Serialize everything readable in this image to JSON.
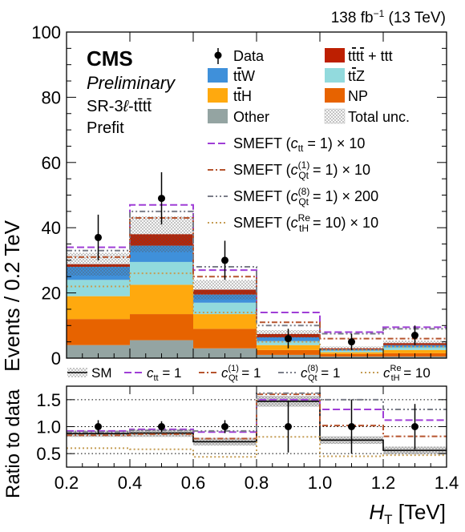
{
  "chart_data": {
    "type": "bar",
    "stacked": true,
    "lumi": "138 fb⁻¹ (13 TeV)",
    "experiment": "CMS",
    "preliminary": "Preliminary",
    "region": "SR-3ℓ-tt̄tt̄",
    "stage": "Prefit",
    "xlabel": "H_T [TeV]",
    "ylabel": "Events / 0.2 TeV",
    "ratio_ylabel": "Ratio to data",
    "xlim": [
      0.2,
      1.4
    ],
    "ylim": [
      0,
      100
    ],
    "ratio_ylim": [
      0.25,
      1.75
    ],
    "xticks": [
      "0.2",
      "0.4",
      "0.6",
      "0.8",
      "1.0",
      "1.2",
      "1.4"
    ],
    "yticks": [
      "0",
      "20",
      "40",
      "60",
      "80",
      "100"
    ],
    "ratio_yticks": [
      "0.5",
      "1.0",
      "1.5"
    ],
    "bin_edges": [
      0.2,
      0.4,
      0.6,
      0.8,
      1.0,
      1.2,
      1.4
    ],
    "stack": [
      {
        "name": "Other",
        "color": "#94a4a2",
        "values": [
          4,
          5.5,
          3,
          1,
          0.5,
          0.5
        ]
      },
      {
        "name": "NP",
        "color": "#e76300",
        "values": [
          8,
          8,
          6,
          1.5,
          0.8,
          1
        ]
      },
      {
        "name": "t̅tH",
        "color": "#ffa90e",
        "values": [
          7,
          9,
          4.5,
          1.5,
          0.5,
          1
        ]
      },
      {
        "name": "t̅tZ",
        "color": "#92dadd",
        "values": [
          5,
          7,
          3.5,
          1.2,
          0.5,
          0.8
        ]
      },
      {
        "name": "t̅tW",
        "color": "#3f90da",
        "values": [
          4,
          5,
          2.5,
          1.2,
          0.4,
          0.7
        ]
      },
      {
        "name": "t̅tt̅t + ttt",
        "color": "#bd1f01",
        "values": [
          0.8,
          3.5,
          1.5,
          1,
          0.3,
          0.6
        ]
      }
    ],
    "total_unc": [
      3.5,
      5.5,
      3.0,
      1.2,
      0.6,
      0.8
    ],
    "data": {
      "name": "Data",
      "x": [
        0.3,
        0.5,
        0.7,
        0.9,
        1.1,
        1.3
      ],
      "y": [
        37,
        49,
        30,
        6,
        5,
        7
      ],
      "err": [
        7,
        8,
        6,
        3,
        2.5,
        3
      ]
    },
    "smeft_lines": [
      {
        "name": "SMEFT (c_tt = 1) × 10",
        "short": "c_tt = 1",
        "color": "#9f3ed6",
        "dash": "9 4",
        "values": [
          34,
          47,
          27,
          14,
          8,
          9.5
        ]
      },
      {
        "name": "SMEFT (c_Qt^(1) = 1) × 10",
        "short": "c_Qt^(1) = 1",
        "color": "#b6542e",
        "dash": "7 3 2 3",
        "values": [
          31,
          43,
          25,
          11,
          6,
          6
        ]
      },
      {
        "name": "SMEFT (c_Qt^(8) = 1) × 200",
        "short": "c_Qt^(8) = 1",
        "color": "#7a7d88",
        "dash": "7 3 2 3 2 3",
        "values": [
          33,
          45,
          28,
          10,
          7.5,
          9
        ]
      },
      {
        "name": "SMEFT (c_tH^Re = 10) × 10",
        "short": "c_tH^Re = 10",
        "color": "#c59d55",
        "dash": "2 3",
        "values": [
          22,
          26,
          14,
          5,
          2.5,
          3.5
        ]
      }
    ],
    "ratio": {
      "data_points": [
        1.0,
        1.0,
        1.0,
        1.0,
        1.0,
        1.0
      ],
      "data_err": [
        0.12,
        0.1,
        0.12,
        0.48,
        0.5,
        0.42
      ],
      "sm": [
        0.87,
        0.88,
        0.72,
        1.47,
        0.75,
        0.56
      ],
      "sm_unc": [
        0.06,
        0.07,
        0.07,
        0.1,
        0.07,
        0.07
      ],
      "lines": [
        [
          0.92,
          0.95,
          0.9,
          1.5,
          1.32,
          1.12
        ],
        [
          0.84,
          0.86,
          0.78,
          1.6,
          1.02,
          0.82
        ],
        [
          0.9,
          0.93,
          0.92,
          1.62,
          1.5,
          1.32
        ],
        [
          0.6,
          0.58,
          0.44,
          0.81,
          0.45,
          0.47
        ]
      ]
    },
    "legend": {
      "data": "Data",
      "tttt": "t̅tt̅t + ttt",
      "ttw": "t̅tW",
      "ttz": "t̅tZ",
      "tth": "t̅tH",
      "np": "NP",
      "other": "Other",
      "unc": "Total unc.",
      "sm": "SM"
    }
  }
}
